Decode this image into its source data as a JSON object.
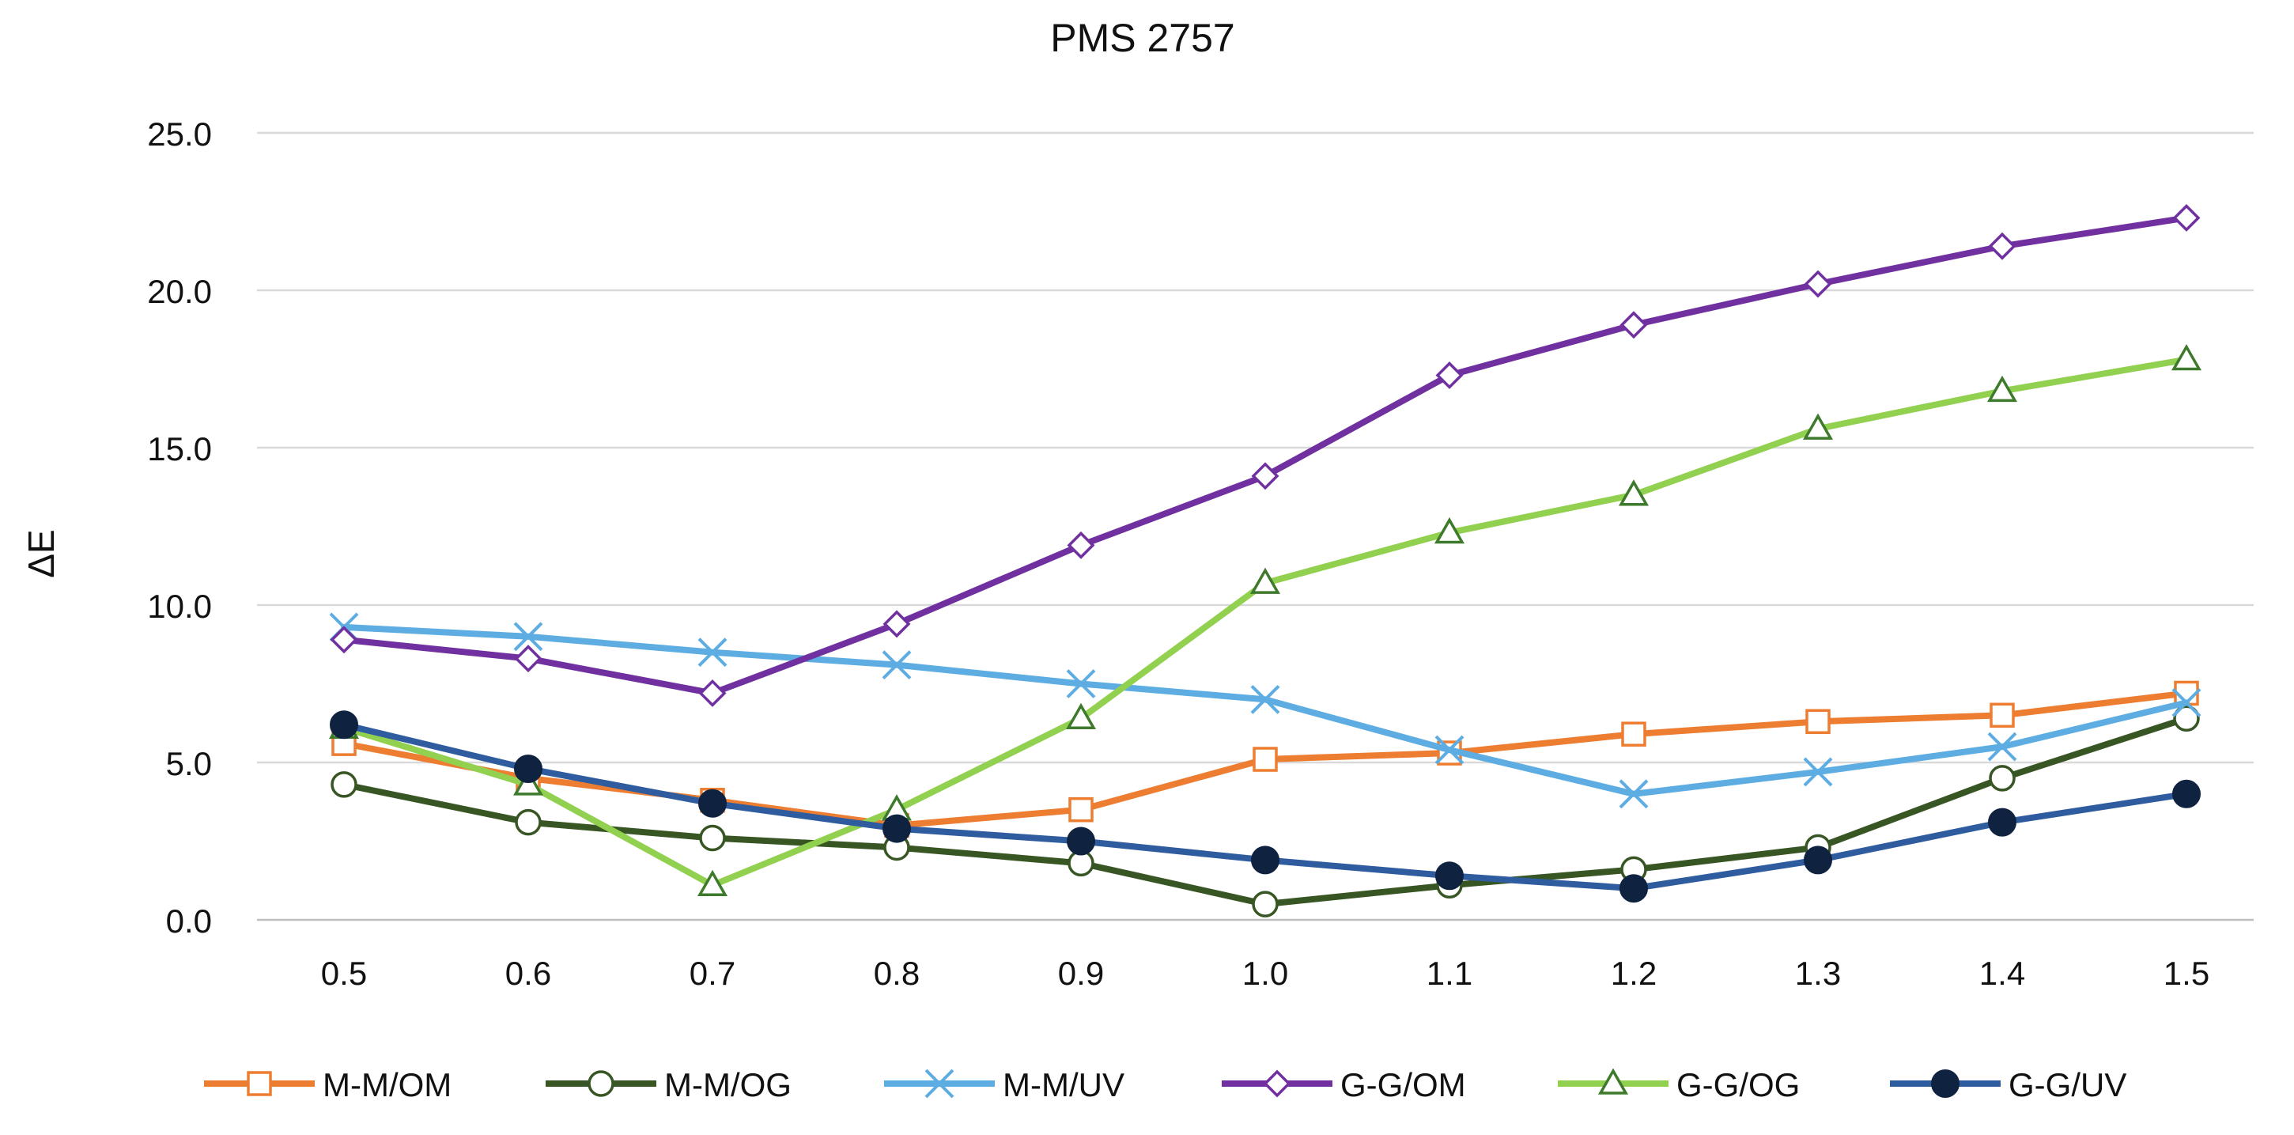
{
  "chart_data": {
    "type": "line",
    "title": "PMS 2757",
    "xlabel": "",
    "ylabel": "ΔE",
    "x": [
      "0.5",
      "0.6",
      "0.7",
      "0.8",
      "0.9",
      "1.0",
      "1.1",
      "1.2",
      "1.3",
      "1.4",
      "1.5"
    ],
    "ylim": [
      0,
      25
    ],
    "yticks": [
      "0.0",
      "5.0",
      "10.0",
      "15.0",
      "20.0",
      "25.0"
    ],
    "grid": true,
    "legend_position": "bottom",
    "series": [
      {
        "name": "M-M/OM",
        "color": "#ED7D31",
        "marker": "square",
        "values": [
          5.6,
          4.5,
          3.8,
          3.0,
          3.5,
          5.1,
          5.3,
          5.9,
          6.3,
          6.5,
          7.2
        ]
      },
      {
        "name": "M-M/OG",
        "color": "#375623",
        "marker": "circle",
        "values": [
          4.3,
          3.1,
          2.6,
          2.3,
          1.8,
          0.5,
          1.1,
          1.6,
          2.3,
          4.5,
          6.4
        ]
      },
      {
        "name": "M-M/UV",
        "color": "#5DADE2",
        "marker": "x",
        "values": [
          9.3,
          9.0,
          8.5,
          8.1,
          7.5,
          7.0,
          5.4,
          4.0,
          4.7,
          5.5,
          6.9
        ]
      },
      {
        "name": "G-G/OM",
        "color": "#7030A0",
        "marker": "diamond",
        "values": [
          8.9,
          8.3,
          7.2,
          9.4,
          11.9,
          14.1,
          17.3,
          18.9,
          20.2,
          21.4,
          22.3
        ]
      },
      {
        "name": "G-G/OG",
        "color": "#92D050",
        "marker": "triangle",
        "values": [
          6.1,
          4.3,
          1.1,
          3.5,
          6.4,
          10.7,
          12.3,
          13.5,
          15.6,
          16.8,
          17.8
        ]
      },
      {
        "name": "G-G/UV",
        "color": "#2E5C9E",
        "marker": "filled-circle",
        "values": [
          6.2,
          4.8,
          3.7,
          2.9,
          2.5,
          1.9,
          1.4,
          1.0,
          1.9,
          3.1,
          4.0
        ]
      }
    ]
  }
}
